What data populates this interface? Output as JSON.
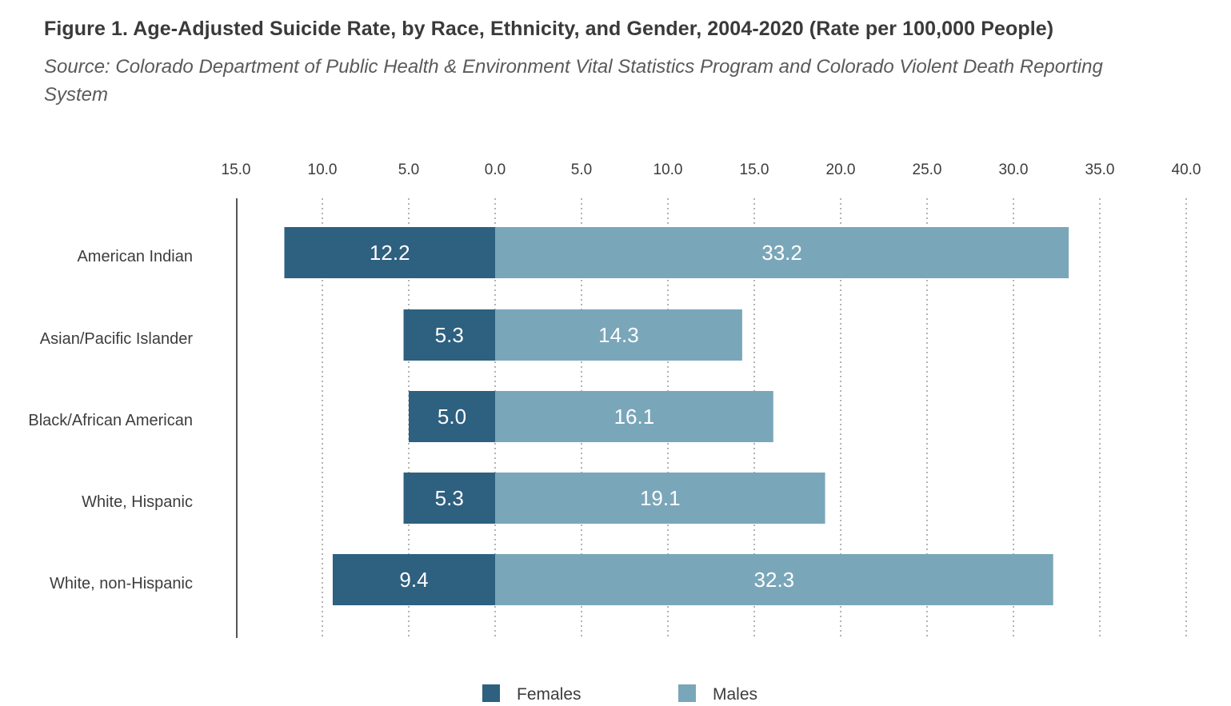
{
  "title": "Figure 1. Age-Adjusted Suicide Rate, by Race, Ethnicity, and Gender, 2004-2020 (Rate per 100,000 People)",
  "subtitle": "Source: Colorado Department of Public Health & Environment Vital Statistics Program and Colorado Violent Death Reporting System",
  "chart_data": {
    "type": "bar",
    "orientation": "horizontal",
    "layout": "diverging",
    "categories": [
      "American Indian",
      "Asian/Pacific Islander",
      "Black/African American",
      "White, Hispanic",
      "White, non-Hispanic"
    ],
    "series": [
      {
        "name": "Females",
        "color": "#2e6080",
        "direction": "left",
        "values": [
          12.2,
          5.3,
          5.0,
          5.3,
          9.4
        ],
        "labels": [
          "12.2",
          "5.3",
          "5.0",
          "5.3",
          "9.4"
        ]
      },
      {
        "name": "Males",
        "color": "#7aa6b9",
        "direction": "right",
        "values": [
          33.2,
          14.3,
          16.1,
          19.1,
          32.3
        ],
        "labels": [
          "33.2",
          "14.3",
          "16.1",
          "19.1",
          "32.3"
        ]
      }
    ],
    "xlim": [
      -15,
      40
    ],
    "ticks": [
      -15,
      -10,
      -5,
      0,
      5,
      10,
      15,
      20,
      25,
      30,
      35,
      40
    ],
    "tick_labels": [
      "15.0",
      "10.0",
      "5.0",
      "0.0",
      "5.0",
      "10.0",
      "15.0",
      "20.0",
      "25.0",
      "30.0",
      "35.0",
      "40.0"
    ],
    "axis_position": "top",
    "grid": "dotted vertical",
    "legend_position": "bottom-center"
  }
}
